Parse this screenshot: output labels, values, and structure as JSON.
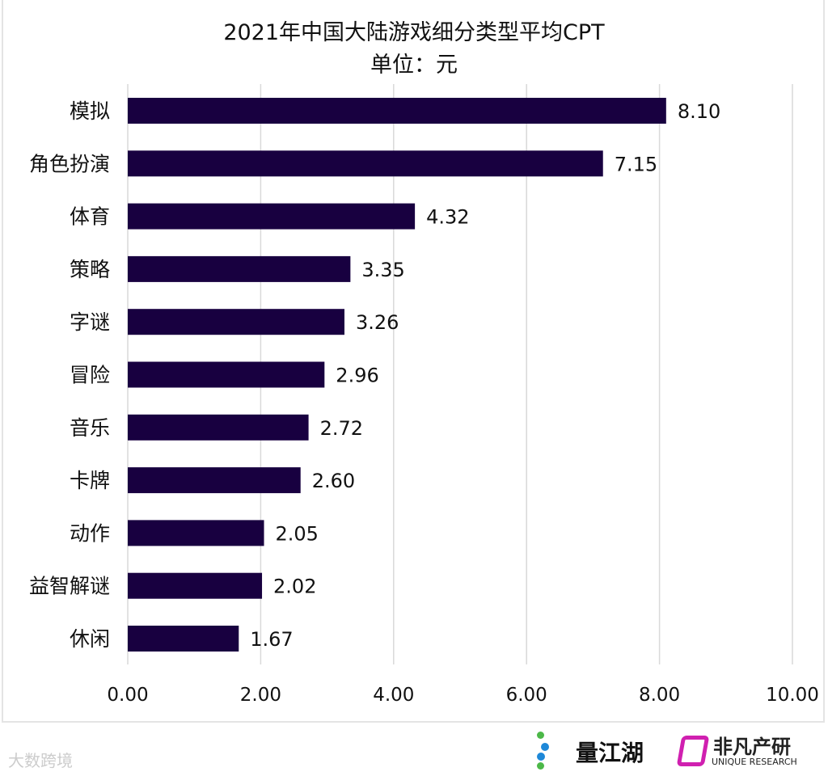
{
  "chart_data": {
    "type": "bar",
    "orientation": "horizontal",
    "title": "2021年中国大陆游戏细分类型平均CPT",
    "subtitle": "单位：元",
    "categories": [
      "模拟",
      "角色扮演",
      "体育",
      "策略",
      "字谜",
      "冒险",
      "音乐",
      "卡牌",
      "动作",
      "益智解谜",
      "休闲"
    ],
    "values": [
      8.1,
      7.15,
      4.32,
      3.35,
      3.26,
      2.96,
      2.72,
      2.6,
      2.05,
      2.02,
      1.67
    ],
    "data_labels": [
      "8.10",
      "7.15",
      "4.32",
      "3.35",
      "3.26",
      "2.96",
      "2.72",
      "2.60",
      "2.05",
      "2.02",
      "1.67"
    ],
    "xlim": [
      0,
      10
    ],
    "xticks": [
      "0.00",
      "2.00",
      "4.00",
      "6.00",
      "8.00",
      "10.00"
    ],
    "grid": "vertical",
    "bar_color": "#180040"
  },
  "footer": {
    "watermark": "大数跨境",
    "logo1": "量江湖",
    "logo2": "非凡产研",
    "logo2_sub": "UNIQUE RESEARCH"
  }
}
